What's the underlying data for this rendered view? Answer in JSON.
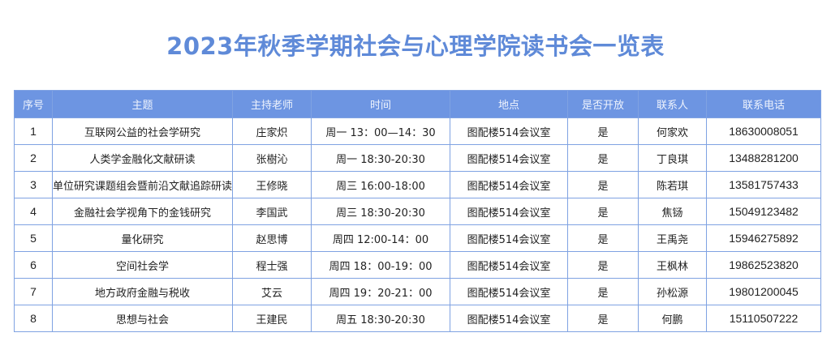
{
  "title": "2023年秋季学期社会与心理学院读书会一览表",
  "headers": [
    "序号",
    "主题",
    "主持老师",
    "时间",
    "地点",
    "是否开放",
    "联系人",
    "联系电话"
  ],
  "rows": [
    [
      "1",
      "互联网公益的社会学研究",
      "庄家炽",
      "周一 13：00—14：30",
      "图配楼514会议室",
      "是",
      "何家欢",
      "18630008051"
    ],
    [
      "2",
      "人类学金融化文献研读",
      "张樹沁",
      "周一 18:30-20:30",
      "图配楼514会议室",
      "是",
      "丁良琪",
      "13488281200"
    ],
    [
      "3",
      "单位研究课题组会暨前沿文献追踪研读",
      "王修晓",
      "周三 16:00-18:00",
      "图配楼514会议室",
      "是",
      "陈若琪",
      "13581757433"
    ],
    [
      "4",
      "金融社会学视角下的金钱研究",
      "李国武",
      "周三 18:30-20:30",
      "图配楼514会议室",
      "是",
      "焦铴",
      "15049123482"
    ],
    [
      "5",
      "量化研究",
      "赵思博",
      "周四 12:00-14：00",
      "图配楼514会议室",
      "是",
      "王禹尧",
      "15946275892"
    ],
    [
      "6",
      "空间社会学",
      "程士强",
      "周四 18：00-19：00",
      "图配楼514会议室",
      "是",
      "王枫林",
      "19862523820"
    ],
    [
      "7",
      "地方政府金融与税收",
      "艾云",
      "周四 19：20-21：00",
      "图配楼514会议室",
      "是",
      "孙松源",
      "19801200045"
    ],
    [
      "8",
      "思想与社会",
      "王建民",
      "周五 18:30-20:30",
      "图配楼514会议室",
      "是",
      "何鹏",
      "15110507222"
    ]
  ]
}
